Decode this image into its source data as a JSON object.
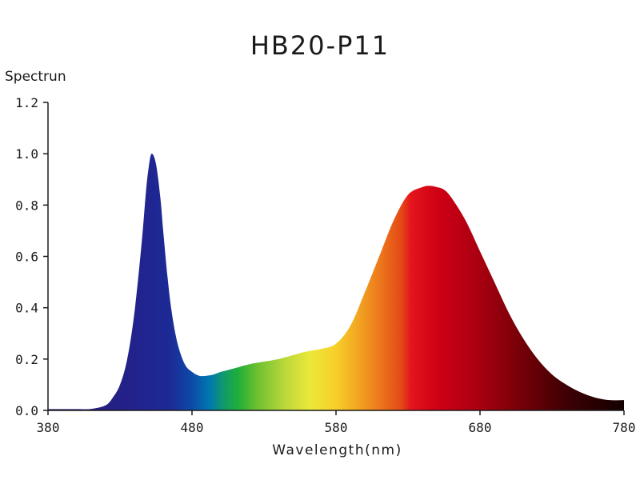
{
  "chart_data": {
    "type": "area",
    "title": "HB20-P11",
    "xlabel": "Wavelength(nm)",
    "ylabel": "Spectrun",
    "xlim": [
      380,
      780
    ],
    "ylim": [
      0,
      1.2
    ],
    "x_ticks": [
      380,
      480,
      580,
      680,
      780
    ],
    "x_tick_labels": [
      "380",
      "480",
      "580",
      "680",
      "780"
    ],
    "y_ticks": [
      0,
      0.2,
      0.4,
      0.6,
      0.8,
      1.0,
      1.2
    ],
    "y_tick_labels": [
      "0.0",
      "0.2",
      "0.4",
      "0.6",
      "0.8",
      "1.0",
      "1.2"
    ],
    "grid": false,
    "fill": "wavelength-color gradient",
    "series": [
      {
        "x": [
          380,
          400,
          410,
          420,
          425,
          430,
          435,
          440,
          445,
          448,
          450,
          452,
          455,
          458,
          460,
          463,
          466,
          470,
          475,
          480,
          485,
          490,
          495,
          500,
          510,
          520,
          530,
          540,
          550,
          560,
          570,
          580,
          590,
          600,
          610,
          620,
          630,
          640,
          645,
          650,
          655,
          660,
          670,
          680,
          690,
          700,
          710,
          720,
          730,
          740,
          750,
          760,
          770,
          780
        ],
        "y": [
          0.005,
          0.005,
          0.006,
          0.02,
          0.05,
          0.1,
          0.2,
          0.38,
          0.65,
          0.85,
          0.95,
          1.0,
          0.96,
          0.83,
          0.7,
          0.52,
          0.38,
          0.26,
          0.18,
          0.15,
          0.135,
          0.135,
          0.14,
          0.15,
          0.165,
          0.18,
          0.19,
          0.2,
          0.215,
          0.23,
          0.24,
          0.26,
          0.33,
          0.46,
          0.6,
          0.74,
          0.84,
          0.87,
          0.875,
          0.87,
          0.86,
          0.83,
          0.74,
          0.62,
          0.5,
          0.38,
          0.28,
          0.2,
          0.14,
          0.1,
          0.07,
          0.05,
          0.04,
          0.04
        ]
      }
    ]
  }
}
